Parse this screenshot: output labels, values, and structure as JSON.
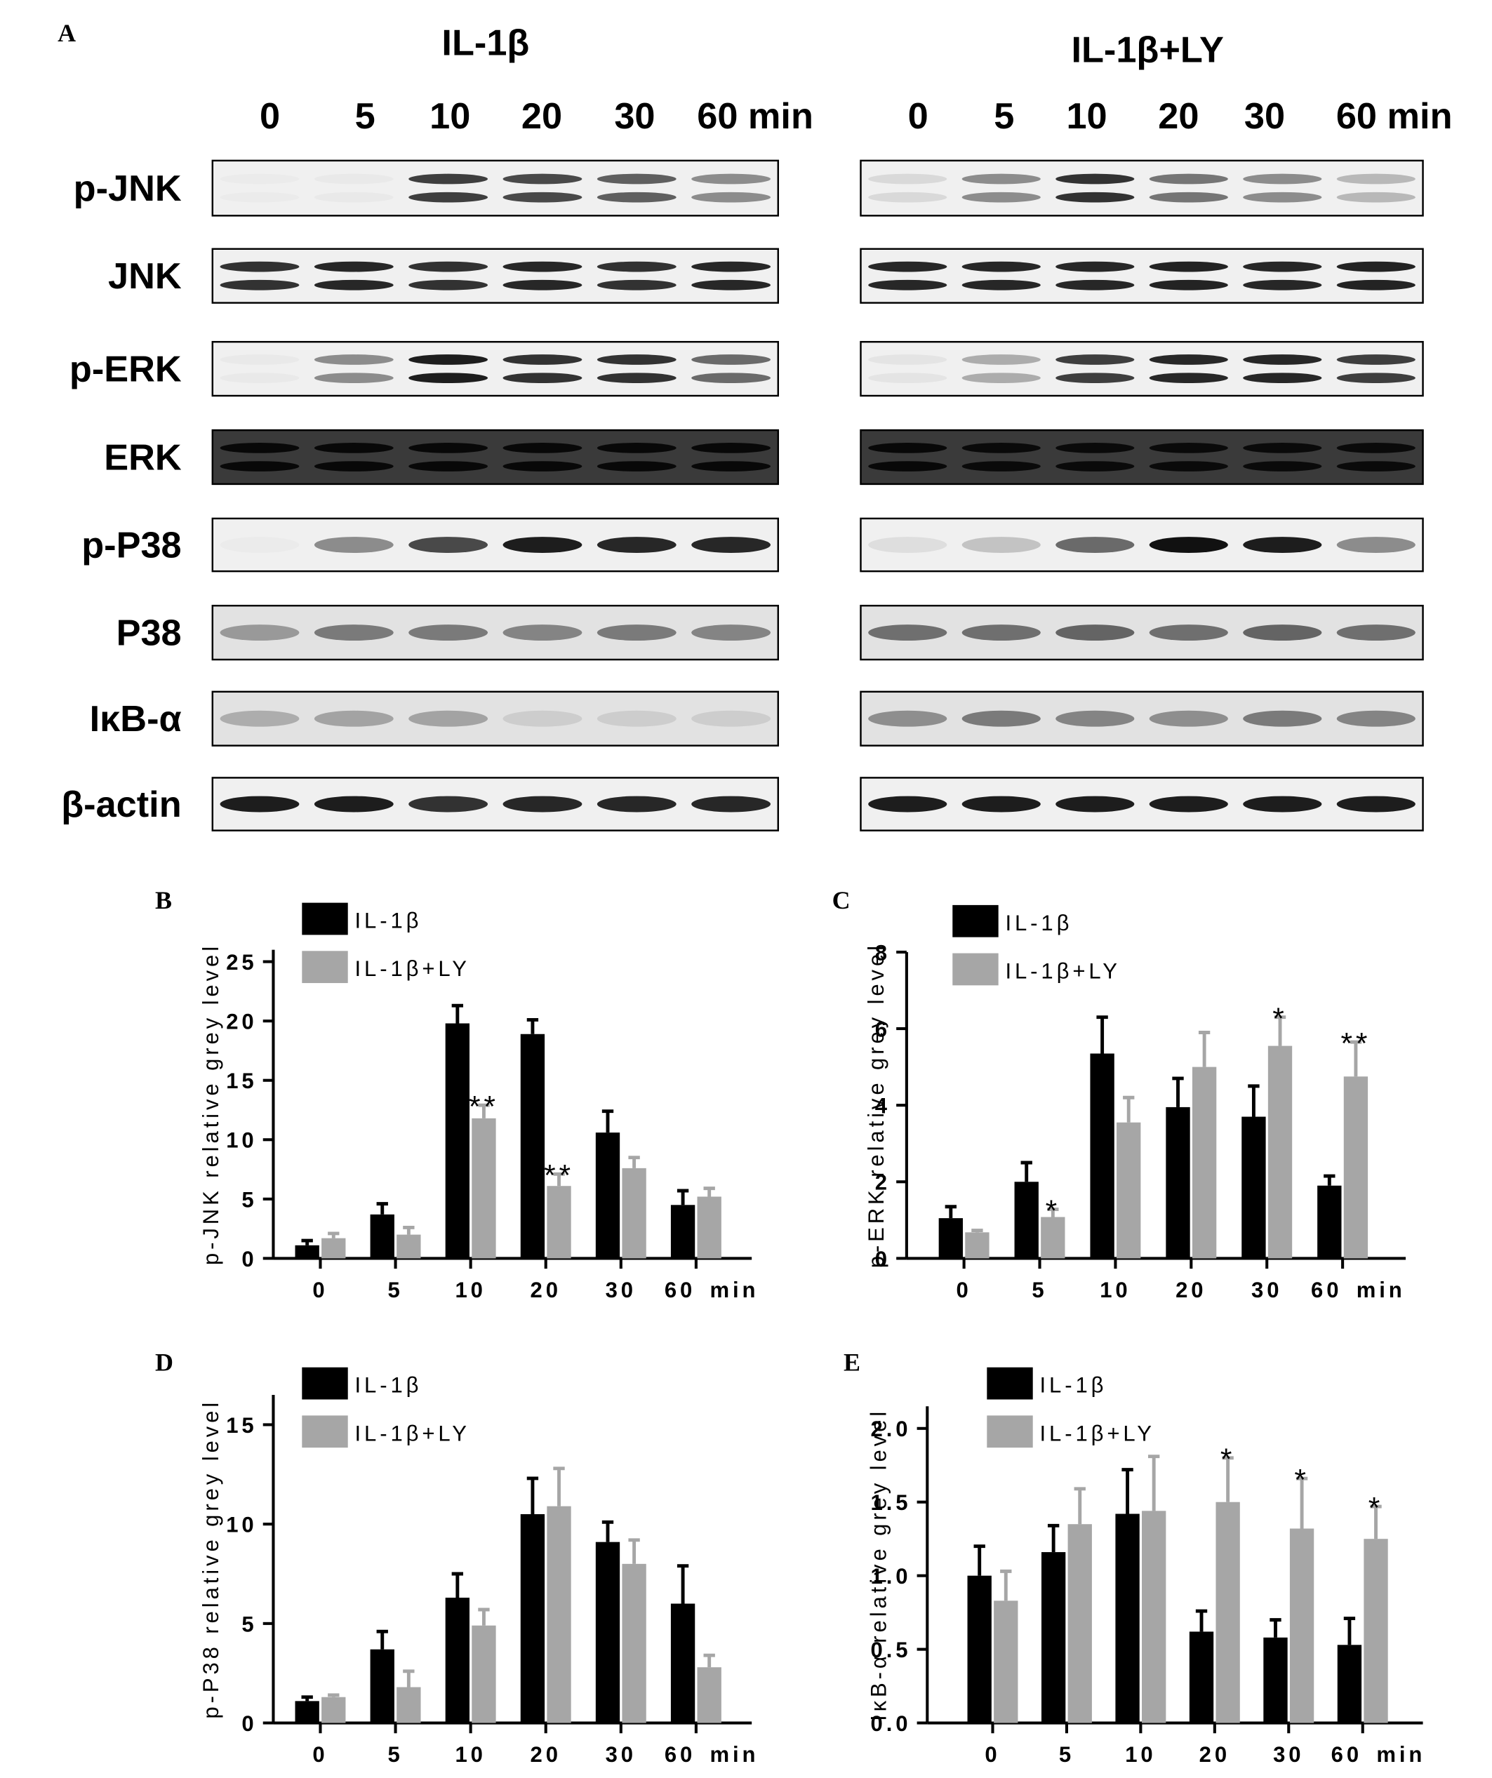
{
  "blot_panel": {
    "label": "A",
    "groups": [
      {
        "title": "IL-1β",
        "lanes": [
          "0",
          "5",
          "10",
          "20",
          "30",
          "60 min"
        ]
      },
      {
        "title": "IL-1β+LY",
        "lanes": [
          "0",
          "5",
          "10",
          "20",
          "30",
          "60 min"
        ]
      }
    ],
    "proteins": [
      "p-JNK",
      "JNK",
      "p-ERK",
      "ERK",
      "p-P38",
      "P38",
      "IκB-α",
      "β-actin"
    ]
  },
  "chart_data": [
    {
      "type": "bar",
      "panel": "B",
      "y_label": "p-JNK relative grey level",
      "categories": [
        "0",
        "5",
        "10",
        "20",
        "30",
        "60"
      ],
      "x_unit": "min",
      "ylim": [
        0,
        26
      ],
      "yticks": [
        0,
        5,
        10,
        15,
        20,
        25
      ],
      "series": [
        {
          "name": "IL-1β",
          "color": "#000000",
          "values": [
            1.1,
            3.7,
            19.8,
            18.9,
            10.6,
            4.5
          ],
          "errors": [
            0.4,
            0.9,
            1.5,
            1.2,
            1.8,
            1.2
          ],
          "annotations": [
            null,
            null,
            null,
            null,
            null,
            null
          ]
        },
        {
          "name": "IL-1β+LY",
          "color": "#a6a6a6",
          "values": [
            1.7,
            2.0,
            11.8,
            6.1,
            7.6,
            5.2
          ],
          "errors": [
            0.4,
            0.6,
            1.1,
            1.0,
            0.9,
            0.7
          ],
          "annotations": [
            null,
            null,
            "**",
            "**",
            null,
            null
          ]
        }
      ]
    },
    {
      "type": "bar",
      "panel": "C",
      "y_label": "p-ERK relative grey level",
      "categories": [
        "0",
        "5",
        "10",
        "20",
        "30",
        "60"
      ],
      "x_unit": "min",
      "ylim": [
        0,
        8
      ],
      "yticks": [
        0,
        2,
        4,
        6,
        8
      ],
      "series": [
        {
          "name": "IL-1β",
          "color": "#000000",
          "values": [
            1.05,
            2.0,
            5.35,
            3.95,
            3.7,
            1.9
          ],
          "errors": [
            0.3,
            0.5,
            0.95,
            0.75,
            0.8,
            0.25
          ],
          "annotations": [
            null,
            null,
            null,
            null,
            null,
            null
          ]
        },
        {
          "name": "IL-1β+LY",
          "color": "#a6a6a6",
          "values": [
            0.68,
            1.08,
            3.55,
            5.0,
            5.55,
            4.75
          ],
          "errors": [
            0.05,
            0.2,
            0.65,
            0.9,
            0.75,
            0.9
          ],
          "annotations": [
            null,
            "*",
            null,
            null,
            "*",
            "**"
          ]
        }
      ]
    },
    {
      "type": "bar",
      "panel": "D",
      "y_label": "p-P38 relative grey level",
      "categories": [
        "0",
        "5",
        "10",
        "20",
        "30",
        "60"
      ],
      "x_unit": "min",
      "ylim": [
        0,
        16.5
      ],
      "yticks": [
        0,
        5,
        10,
        15
      ],
      "series": [
        {
          "name": "IL-1β",
          "color": "#000000",
          "values": [
            1.1,
            3.7,
            6.3,
            10.5,
            9.1,
            6.0
          ],
          "errors": [
            0.2,
            0.9,
            1.2,
            1.8,
            1.0,
            1.9
          ],
          "annotations": [
            null,
            null,
            null,
            null,
            null,
            null
          ]
        },
        {
          "name": "IL-1β+LY",
          "color": "#a6a6a6",
          "values": [
            1.3,
            1.8,
            4.9,
            10.9,
            8.0,
            2.8
          ],
          "errors": [
            0.1,
            0.8,
            0.8,
            1.9,
            1.2,
            0.6
          ],
          "annotations": [
            null,
            null,
            null,
            null,
            null,
            null
          ]
        }
      ]
    },
    {
      "type": "bar",
      "panel": "E",
      "y_label": "IκB-α relative grey level",
      "categories": [
        "0",
        "5",
        "10",
        "20",
        "30",
        "60"
      ],
      "x_unit": "min",
      "ylim": [
        0,
        2.15
      ],
      "yticks": [
        {
          "value": 0,
          "label": "0.0"
        },
        {
          "value": 0.5,
          "label": "0.5"
        },
        {
          "value": 1,
          "label": "1.0"
        },
        {
          "value": 1.5,
          "label": "1.5"
        },
        {
          "value": 2,
          "label": "2.0"
        }
      ],
      "series": [
        {
          "name": "IL-1β",
          "color": "#000000",
          "values": [
            1.0,
            1.16,
            1.42,
            0.62,
            0.58,
            0.53
          ],
          "errors": [
            0.2,
            0.18,
            0.3,
            0.14,
            0.12,
            0.18
          ],
          "annotations": [
            null,
            null,
            null,
            null,
            null,
            null
          ]
        },
        {
          "name": "IL-1β+LY",
          "color": "#a6a6a6",
          "values": [
            0.83,
            1.35,
            1.44,
            1.5,
            1.32,
            1.25
          ],
          "errors": [
            0.2,
            0.24,
            0.37,
            0.3,
            0.34,
            0.22
          ],
          "annotations": [
            null,
            null,
            null,
            "*",
            "*",
            "*"
          ]
        }
      ]
    }
  ]
}
